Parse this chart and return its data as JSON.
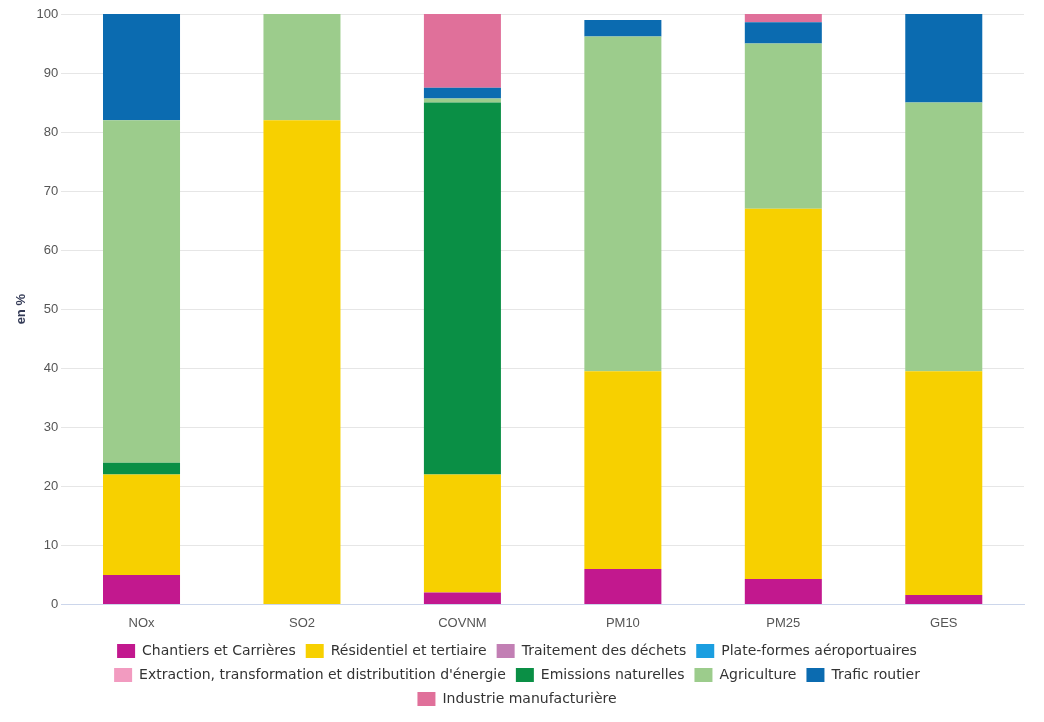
{
  "chart_data": {
    "type": "bar",
    "stacked": true,
    "ylabel": "en %",
    "categories": [
      "NOx",
      "SO2",
      "COVNM",
      "PM10",
      "PM25",
      "GES"
    ],
    "series": [
      {
        "name": "Chantiers et Carrières",
        "color": "#c2188e",
        "values": [
          5,
          0,
          2,
          6,
          4.3,
          1.6
        ]
      },
      {
        "name": "Résidentiel et tertiaire",
        "color": "#f7d000",
        "values": [
          17,
          82,
          20,
          33.5,
          62.7,
          37.9
        ]
      },
      {
        "name": "Traitement des déchets",
        "color": "#c27fb4",
        "values": [
          0,
          0,
          0,
          0,
          0,
          0
        ]
      },
      {
        "name": "Plate-formes aéroportuaires",
        "color": "#1b9ee0",
        "values": [
          0,
          0,
          0,
          0,
          0,
          0
        ]
      },
      {
        "name": "Extraction, transformation et distributition d'énergie",
        "color": "#f29bc0",
        "values": [
          0,
          0,
          0,
          0,
          0,
          0
        ]
      },
      {
        "name": "Emissions naturelles",
        "color": "#0a8f45",
        "values": [
          2,
          0,
          63,
          0,
          0,
          0
        ]
      },
      {
        "name": "Agriculture",
        "color": "#9ccc8c",
        "values": [
          58,
          18,
          0.7,
          56.7,
          28,
          45.5
        ]
      },
      {
        "name": "Trafic routier",
        "color": "#0b6bb0",
        "values": [
          18,
          0,
          1.8,
          2.8,
          3.6,
          15
        ]
      },
      {
        "name": "Industrie manufacturière",
        "color": "#e0709a",
        "values": [
          0,
          0,
          12.5,
          0,
          1.4,
          0
        ]
      }
    ],
    "ylim": [
      0,
      100
    ],
    "yticks": [
      0,
      10,
      20,
      30,
      40,
      50,
      60,
      70,
      80,
      90,
      100
    ],
    "grid": "y",
    "legend": "bottom"
  }
}
